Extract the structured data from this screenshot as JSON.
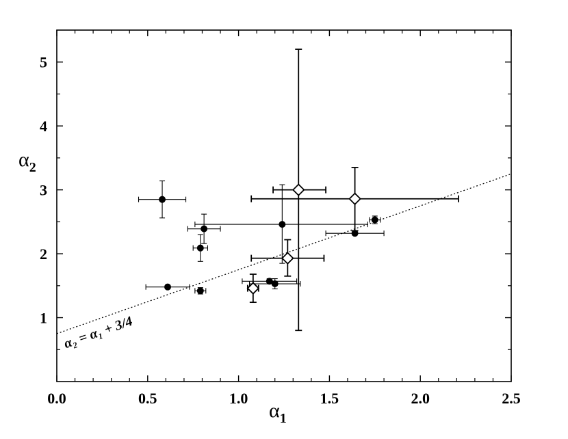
{
  "chart_data": {
    "type": "scatter",
    "xlabel": {
      "symbol": "α",
      "subscript": "1"
    },
    "ylabel": {
      "symbol": "α",
      "subscript": "2"
    },
    "xlim": [
      0.0,
      2.5
    ],
    "ylim": [
      0.0,
      5.5
    ],
    "xticks": [
      {
        "value": 0.0,
        "label": "0.0"
      },
      {
        "value": 0.5,
        "label": "0.5"
      },
      {
        "value": 1.0,
        "label": "1.0"
      },
      {
        "value": 1.5,
        "label": "1.5"
      },
      {
        "value": 2.0,
        "label": "2.0"
      },
      {
        "value": 2.5,
        "label": "2.5"
      }
    ],
    "yticks": [
      {
        "value": 1,
        "label": "1"
      },
      {
        "value": 2,
        "label": "2"
      },
      {
        "value": 3,
        "label": "3"
      },
      {
        "value": 4,
        "label": "4"
      },
      {
        "value": 5,
        "label": "5"
      }
    ],
    "x_minor_step": 0.1,
    "y_minor_step": 0.5,
    "grid": false,
    "series": [
      {
        "marker": "circle",
        "fill": "#000000",
        "points": [
          {
            "x": 0.58,
            "y": 2.85,
            "xlo": 0.45,
            "xhi": 0.71,
            "ylo": 2.56,
            "yhi": 3.14
          },
          {
            "x": 0.81,
            "y": 2.39,
            "xlo": 0.72,
            "xhi": 0.9,
            "ylo": 2.16,
            "yhi": 2.62
          },
          {
            "x": 0.79,
            "y": 2.09,
            "xlo": 0.75,
            "xhi": 0.83,
            "ylo": 1.88,
            "yhi": 2.3
          },
          {
            "x": 0.61,
            "y": 1.48,
            "xlo": 0.49,
            "xhi": 0.73,
            "ylo": 1.45,
            "yhi": 1.51
          },
          {
            "x": 0.79,
            "y": 1.42,
            "xlo": 0.76,
            "xhi": 0.82,
            "ylo": 1.37,
            "yhi": 1.47
          },
          {
            "x": 1.24,
            "y": 2.46,
            "xlo": 0.76,
            "xhi": 1.71,
            "ylo": 1.85,
            "yhi": 3.08
          },
          {
            "x": 1.17,
            "y": 1.57,
            "xlo": 1.02,
            "xhi": 1.32,
            "ylo": 1.53,
            "yhi": 1.61
          },
          {
            "x": 1.2,
            "y": 1.53,
            "xlo": 1.06,
            "xhi": 1.34,
            "ylo": 1.45,
            "yhi": 1.61
          },
          {
            "x": 1.64,
            "y": 2.32,
            "xlo": 1.48,
            "xhi": 1.8,
            "ylo": 2.29,
            "yhi": 2.35
          },
          {
            "x": 1.75,
            "y": 2.53,
            "xlo": 1.72,
            "xhi": 1.78,
            "ylo": 2.47,
            "yhi": 2.59
          }
        ]
      },
      {
        "marker": "diamond",
        "fill": "#ffffff",
        "points": [
          {
            "x": 1.33,
            "y": 3.0,
            "xlo": 1.19,
            "xhi": 1.48,
            "ylo": 0.8,
            "yhi": 5.2
          },
          {
            "x": 1.64,
            "y": 2.86,
            "xlo": 1.07,
            "xhi": 2.21,
            "ylo": 2.36,
            "yhi": 3.35
          },
          {
            "x": 1.27,
            "y": 1.93,
            "xlo": 1.07,
            "xhi": 1.47,
            "ylo": 1.65,
            "yhi": 2.22
          },
          {
            "x": 1.08,
            "y": 1.46,
            "xlo": 1.05,
            "xhi": 1.11,
            "ylo": 1.24,
            "yhi": 1.68
          }
        ]
      }
    ],
    "reference_line": {
      "slope": 1,
      "intercept": 0.75,
      "style": "dotted",
      "label": "α₂ = α₁ + 3/4"
    }
  }
}
